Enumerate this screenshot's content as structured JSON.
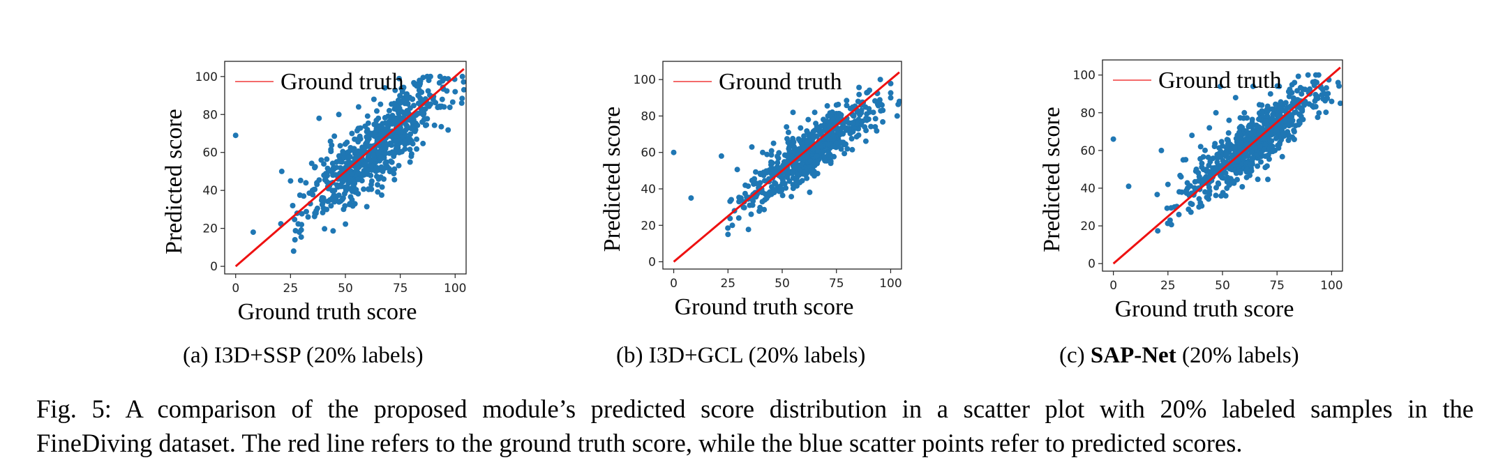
{
  "chart_data": [
    {
      "type": "scatter",
      "xlabel": "Ground truth score",
      "ylabel": "Predicted score",
      "xlim": [
        -5,
        105
      ],
      "ylim": [
        -4,
        108
      ],
      "xticks": [
        0,
        25,
        50,
        75,
        100
      ],
      "yticks": [
        0,
        20,
        40,
        60,
        80,
        100
      ],
      "legend": {
        "entry": "Ground truth",
        "position": "top-left"
      },
      "ground_truth_line": {
        "name": "Ground truth",
        "x": [
          0,
          104
        ],
        "y": [
          0,
          104
        ],
        "color": "#ee1111"
      },
      "points_color": "#1f77b4",
      "points": [
        [
          0,
          69
        ],
        [
          8,
          18
        ],
        [
          21,
          50
        ],
        [
          25,
          45
        ],
        [
          26,
          32
        ],
        [
          27,
          14
        ],
        [
          28,
          28
        ],
        [
          29,
          18
        ],
        [
          30,
          22
        ],
        [
          31,
          37
        ],
        [
          32,
          44
        ],
        [
          33,
          26
        ],
        [
          34,
          33
        ],
        [
          35,
          40
        ],
        [
          36,
          52
        ],
        [
          37,
          44
        ],
        [
          38,
          78
        ],
        [
          39,
          56
        ],
        [
          40,
          36
        ],
        [
          41,
          47
        ],
        [
          42,
          42
        ],
        [
          43,
          35
        ],
        [
          44,
          40
        ],
        [
          45,
          34
        ],
        [
          46,
          55
        ],
        [
          47,
          80
        ],
        [
          48,
          48
        ],
        [
          49,
          36
        ],
        [
          50,
          52
        ],
        [
          51,
          60
        ],
        [
          52,
          33
        ],
        [
          53,
          70
        ],
        [
          54,
          62
        ],
        [
          55,
          46
        ],
        [
          56,
          84
        ],
        [
          58,
          48
        ],
        [
          60,
          72
        ],
        [
          62,
          56
        ],
        [
          63,
          88
        ],
        [
          65,
          78
        ],
        [
          67,
          50
        ],
        [
          68,
          94
        ],
        [
          70,
          82
        ],
        [
          72,
          58
        ],
        [
          75,
          86
        ],
        [
          76,
          92
        ],
        [
          78,
          74
        ],
        [
          80,
          58
        ],
        [
          82,
          96
        ],
        [
          85,
          76
        ],
        [
          88,
          98
        ],
        [
          90,
          88
        ],
        [
          95,
          84
        ],
        [
          100,
          92
        ],
        [
          103,
          86
        ],
        [
          104,
          93
        ]
      ]
    },
    {
      "type": "scatter",
      "xlabel": "Ground truth score",
      "ylabel": "Predicted score",
      "xlim": [
        -5,
        105
      ],
      "ylim": [
        -4,
        110
      ],
      "xticks": [
        0,
        25,
        50,
        75,
        100
      ],
      "yticks": [
        0,
        20,
        40,
        60,
        80,
        100
      ],
      "legend": {
        "entry": "Ground truth",
        "position": "top-left"
      },
      "ground_truth_line": {
        "name": "Ground truth",
        "x": [
          0,
          104
        ],
        "y": [
          0,
          104
        ],
        "color": "#ee1111"
      },
      "points_color": "#1f77b4",
      "points": [
        [
          0,
          60
        ],
        [
          8,
          35
        ],
        [
          22,
          58
        ],
        [
          25,
          15
        ],
        [
          27,
          20
        ],
        [
          28,
          28
        ],
        [
          30,
          24
        ],
        [
          31,
          35
        ],
        [
          33,
          42
        ],
        [
          35,
          31
        ],
        [
          36,
          63
        ],
        [
          38,
          36
        ],
        [
          40,
          48
        ],
        [
          41,
          60
        ],
        [
          42,
          34
        ],
        [
          44,
          44
        ],
        [
          45,
          37
        ],
        [
          46,
          65
        ],
        [
          48,
          50
        ],
        [
          50,
          40
        ],
        [
          52,
          74
        ],
        [
          54,
          58
        ],
        [
          55,
          82
        ],
        [
          57,
          47
        ],
        [
          60,
          66
        ],
        [
          62,
          78
        ],
        [
          63,
          55
        ],
        [
          65,
          82
        ],
        [
          67,
          60
        ],
        [
          70,
          72
        ],
        [
          72,
          56
        ],
        [
          75,
          86
        ],
        [
          78,
          74
        ],
        [
          80,
          62
        ],
        [
          83,
          80
        ],
        [
          85,
          88
        ],
        [
          88,
          74
        ],
        [
          92,
          82
        ],
        [
          96,
          86
        ],
        [
          100,
          90
        ],
        [
          103,
          80
        ],
        [
          104,
          88
        ]
      ]
    },
    {
      "type": "scatter",
      "xlabel": "Ground truth score",
      "ylabel": "Predicted score",
      "xlim": [
        -5,
        105
      ],
      "ylim": [
        -4,
        108
      ],
      "xticks": [
        0,
        25,
        50,
        75,
        100
      ],
      "yticks": [
        0,
        20,
        40,
        60,
        80,
        100
      ],
      "legend": {
        "entry": "Ground truth",
        "position": "top-left"
      },
      "ground_truth_line": {
        "name": "Ground truth",
        "x": [
          0,
          104
        ],
        "y": [
          0,
          104
        ],
        "color": "#ee1111"
      },
      "points_color": "#1f77b4",
      "points": [
        [
          0,
          66
        ],
        [
          7,
          41
        ],
        [
          22,
          60
        ],
        [
          25,
          42
        ],
        [
          26,
          23
        ],
        [
          28,
          30
        ],
        [
          30,
          26
        ],
        [
          31,
          46
        ],
        [
          32,
          55
        ],
        [
          34,
          40
        ],
        [
          36,
          68
        ],
        [
          38,
          50
        ],
        [
          40,
          62
        ],
        [
          42,
          38
        ],
        [
          44,
          72
        ],
        [
          45,
          44
        ],
        [
          47,
          80
        ],
        [
          48,
          52
        ],
        [
          49,
          94
        ],
        [
          50,
          58
        ],
        [
          52,
          40
        ],
        [
          53,
          76
        ],
        [
          55,
          62
        ],
        [
          56,
          88
        ],
        [
          58,
          50
        ],
        [
          60,
          80
        ],
        [
          62,
          66
        ],
        [
          64,
          94
        ],
        [
          66,
          56
        ],
        [
          68,
          84
        ],
        [
          70,
          64
        ],
        [
          72,
          90
        ],
        [
          74,
          60
        ],
        [
          76,
          94
        ],
        [
          78,
          76
        ],
        [
          80,
          68
        ],
        [
          83,
          96
        ],
        [
          86,
          82
        ],
        [
          90,
          90
        ],
        [
          95,
          94
        ],
        [
          100,
          86
        ],
        [
          103,
          96
        ],
        [
          104,
          85
        ]
      ]
    }
  ],
  "subcaptions": [
    {
      "label": "(a) I3D+SSP (20% labels)"
    },
    {
      "label": "(b) I3D+GCL (20% labels)"
    },
    {
      "label_prefix": "(c) ",
      "label_bold": "SAP-Net",
      "label_suffix": " (20% labels)"
    }
  ],
  "caption": {
    "line1": "Fig. 5: A comparison of the proposed module’s predicted score distribution in a scatter plot with 20% labeled samples in the",
    "line2": "FineDiving dataset. The red line refers to the ground truth score, while the blue scatter points refer to predicted scores."
  }
}
